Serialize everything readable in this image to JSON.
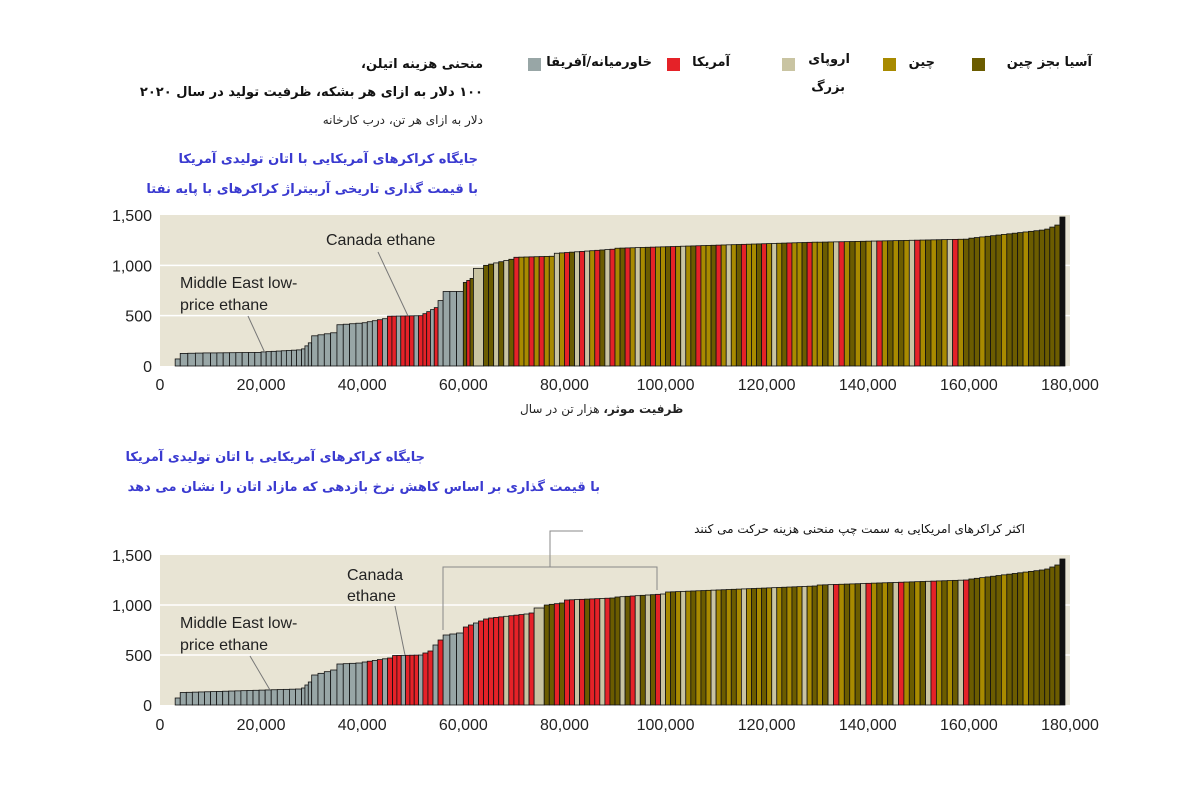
{
  "header": {
    "title_line1": "منحنی هزینه اتیلن،",
    "title_line2": "۱۰۰ دلار به ازای هر بشکه، ظرفیت تولید در سال ۲۰۲۰",
    "unit": "دلار به ازای هر تن، درب کارخانه"
  },
  "legend": [
    {
      "code": "S",
      "label": "آسیا بجز چین",
      "color": "#6b5c00"
    },
    {
      "code": "C",
      "label": "چین",
      "color": "#a88a00"
    },
    {
      "code": "E",
      "label": "اروپای",
      "label2": "بزرگ",
      "color": "#c9c4a2"
    },
    {
      "code": "A",
      "label": "آمریکا",
      "color": "#e52228"
    },
    {
      "code": "M",
      "label": "خاورمیانه/آفریقا",
      "color": "#98a6a6"
    }
  ],
  "colors": {
    "K": "#111111",
    "plot_bg": "#e8e4d4",
    "grid": "#ffffff",
    "bar_outline": "#111111",
    "caption_blue": "#3a3ad0"
  },
  "chart_data": [
    {
      "type": "bar",
      "caption_line1": "جایگاه کراکرهای آمریکایی با اتان تولیدی آمریکا",
      "caption_line2": "با قیمت گذاری تاریخی آربیتراژ کراکرهای با پایه نفتا",
      "xlabel_bold": "ظرفیت موثر،",
      "xlabel": " هزار تن در سال",
      "xlim": [
        0,
        180000
      ],
      "ylim": [
        0,
        1500
      ],
      "yticks": [
        "0",
        "500",
        "1,000",
        "1,500"
      ],
      "xticks": [
        "0",
        "20,000",
        "40,000",
        "60,000",
        "80,000",
        "100,000",
        "120,000",
        "140,000",
        "160,000",
        "180,000"
      ],
      "grid": true,
      "annotations": {
        "canada": "Canada ethane",
        "me1": "Middle East low-",
        "me2": "price ethane"
      },
      "segments": [
        [
          3000,
          4000,
          70,
          70,
          "M",
          1
        ],
        [
          4000,
          10000,
          125,
          130,
          "M",
          4
        ],
        [
          10000,
          20000,
          130,
          135,
          "M",
          8
        ],
        [
          20000,
          28000,
          140,
          160,
          "M",
          8
        ],
        [
          28000,
          30000,
          170,
          230,
          "M",
          3
        ],
        [
          30000,
          35000,
          300,
          330,
          "M",
          4
        ],
        [
          35000,
          40000,
          410,
          425,
          "M",
          4
        ],
        [
          40000,
          45000,
          430,
          470,
          "MMMA",
          5
        ],
        [
          45000,
          52000,
          495,
          500,
          "AAMA",
          8
        ],
        [
          52000,
          55000,
          520,
          580,
          "AAM",
          4
        ],
        [
          55000,
          56000,
          650,
          650,
          "M",
          1
        ],
        [
          56000,
          60000,
          740,
          740,
          "M",
          3
        ],
        [
          60000,
          62000,
          830,
          870,
          "SA",
          3
        ],
        [
          62000,
          64000,
          970,
          980,
          "E",
          1
        ],
        [
          64000,
          70000,
          1000,
          1060,
          "SSESE",
          6
        ],
        [
          70000,
          78000,
          1080,
          1090,
          "ACCAC",
          8
        ],
        [
          78000,
          90000,
          1120,
          1160,
          "ECASEA",
          12
        ],
        [
          90000,
          130000,
          1170,
          1230,
          "CSACECSAC",
          40
        ],
        [
          130000,
          160000,
          1230,
          1260,
          "CSCEACS",
          28
        ],
        [
          160000,
          175000,
          1270,
          1350,
          "SSCS",
          14
        ],
        [
          175000,
          178000,
          1360,
          1400,
          "S",
          3
        ],
        [
          178000,
          179000,
          1480,
          1480,
          "K",
          1
        ]
      ]
    },
    {
      "type": "bar",
      "caption_line1": "جایگاه کراکرهای آمریکایی با اتان تولیدی آمریکا",
      "caption_line2": "با قیمت گذاری بر اساس کاهش نرخ بازدهی که مازاد اتان را نشان می دهد",
      "xlim": [
        0,
        180000
      ],
      "ylim": [
        0,
        1500
      ],
      "yticks": [
        "0",
        "500",
        "1,000",
        "1,500"
      ],
      "xticks": [
        "0",
        "20,000",
        "40,000",
        "60,000",
        "80,000",
        "100,000",
        "120,000",
        "140,000",
        "160,000",
        "180,000"
      ],
      "grid": true,
      "annotations": {
        "canada1": "Canada",
        "canada2": "ethane",
        "me1": "Middle East low-",
        "me2": "price ethane",
        "bracket": "اکثر کراکرهای امریکایی به سمت چپ منحنی هزینه حرکت می کنند"
      },
      "segments": [
        [
          3000,
          4000,
          70,
          70,
          "M",
          1
        ],
        [
          4000,
          28000,
          125,
          160,
          "M",
          20
        ],
        [
          28000,
          30000,
          170,
          230,
          "M",
          3
        ],
        [
          30000,
          35000,
          300,
          350,
          "M",
          4
        ],
        [
          35000,
          40000,
          410,
          420,
          "M",
          4
        ],
        [
          40000,
          46000,
          430,
          470,
          "MAMA",
          6
        ],
        [
          46000,
          52000,
          495,
          500,
          "AAMA",
          7
        ],
        [
          52000,
          54000,
          520,
          540,
          "A",
          2
        ],
        [
          54000,
          56000,
          600,
          650,
          "MA",
          2
        ],
        [
          56000,
          60000,
          700,
          720,
          "M",
          3
        ],
        [
          60000,
          65000,
          780,
          860,
          "AAMA",
          5
        ],
        [
          65000,
          73000,
          870,
          910,
          "AAAE",
          8
        ],
        [
          73000,
          74000,
          920,
          920,
          "A",
          1
        ],
        [
          74000,
          76000,
          970,
          970,
          "E",
          1
        ],
        [
          76000,
          80000,
          1000,
          1020,
          "SSA",
          4
        ],
        [
          80000,
          90000,
          1050,
          1070,
          "AAEAS",
          10
        ],
        [
          90000,
          100000,
          1080,
          1110,
          "SESAE",
          10
        ],
        [
          100000,
          130000,
          1130,
          1190,
          "CSCECS",
          30
        ],
        [
          130000,
          160000,
          1200,
          1250,
          "CSEACS",
          28
        ],
        [
          160000,
          175000,
          1260,
          1350,
          "SSCS",
          14
        ],
        [
          175000,
          178000,
          1360,
          1400,
          "S",
          3
        ],
        [
          178000,
          179000,
          1460,
          1460,
          "K",
          1
        ]
      ]
    }
  ]
}
